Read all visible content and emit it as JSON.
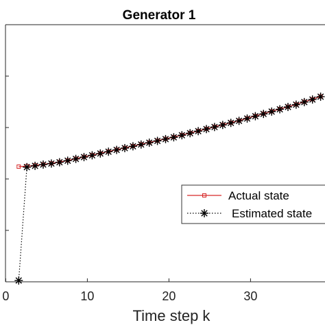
{
  "chart_data": {
    "type": "line",
    "title": "Generator 1",
    "xlabel": "Time step k",
    "ylabel": "",
    "xlim": [
      0,
      38.5
    ],
    "ylim": [
      0,
      1.0
    ],
    "xticks": [
      0,
      10,
      20,
      30
    ],
    "xtick_labels": [
      "0",
      "10",
      "20",
      "30"
    ],
    "yticks": [
      0,
      0.2,
      0.4,
      0.6,
      0.8,
      1.0
    ],
    "grid": false,
    "legend_position": "center-right",
    "series": [
      {
        "name": "Actual state",
        "color": "#d62728",
        "line_style": "solid",
        "marker": "square",
        "x": [
          1,
          2,
          3,
          4,
          5,
          6,
          7,
          8,
          9,
          10,
          11,
          12,
          13,
          14,
          15,
          16,
          17,
          18,
          19,
          20,
          21,
          22,
          23,
          24,
          25,
          26,
          27,
          28,
          29,
          30,
          31,
          32,
          33,
          34,
          35,
          36,
          37,
          38
        ],
        "y": [
          0.448,
          0.45,
          0.453,
          0.457,
          0.461,
          0.466,
          0.472,
          0.479,
          0.486,
          0.493,
          0.5,
          0.507,
          0.514,
          0.521,
          0.528,
          0.535,
          0.542,
          0.549,
          0.556,
          0.563,
          0.571,
          0.579,
          0.587,
          0.595,
          0.603,
          0.611,
          0.619,
          0.627,
          0.636,
          0.645,
          0.654,
          0.663,
          0.672,
          0.681,
          0.69,
          0.7,
          0.71,
          0.721
        ]
      },
      {
        "name": "Estimated state",
        "color": "#000000",
        "line_style": "dotted",
        "marker": "asterisk",
        "x": [
          1,
          2,
          3,
          4,
          5,
          6,
          7,
          8,
          9,
          10,
          11,
          12,
          13,
          14,
          15,
          16,
          17,
          18,
          19,
          20,
          21,
          22,
          23,
          24,
          25,
          26,
          27,
          28,
          29,
          30,
          31,
          32,
          33,
          34,
          35,
          36,
          37,
          38
        ],
        "y": [
          0.005,
          0.446,
          0.451,
          0.456,
          0.46,
          0.465,
          0.471,
          0.478,
          0.485,
          0.492,
          0.499,
          0.506,
          0.513,
          0.52,
          0.527,
          0.534,
          0.541,
          0.548,
          0.555,
          0.562,
          0.57,
          0.578,
          0.586,
          0.594,
          0.602,
          0.61,
          0.618,
          0.626,
          0.635,
          0.644,
          0.653,
          0.662,
          0.671,
          0.68,
          0.689,
          0.699,
          0.709,
          0.72
        ]
      }
    ]
  }
}
